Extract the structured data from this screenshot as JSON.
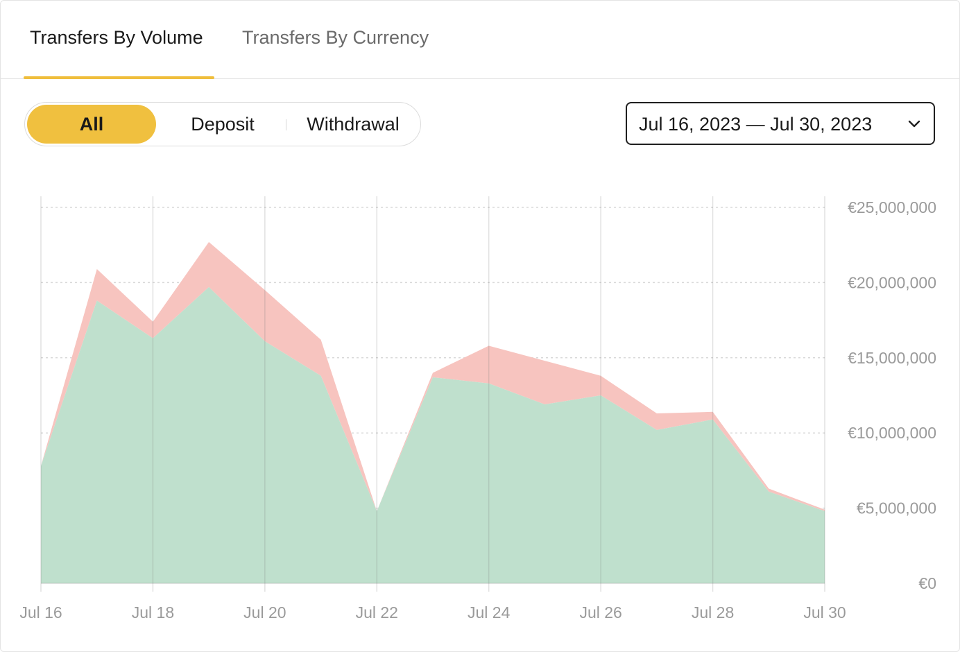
{
  "tabs": [
    {
      "label": "Transfers By Volume",
      "active": true
    },
    {
      "label": "Transfers By Currency",
      "active": false
    }
  ],
  "filter": {
    "options": [
      "All",
      "Deposit",
      "Withdrawal"
    ],
    "selected": "All"
  },
  "date_range": {
    "label": "Jul 16, 2023 — Jul 30, 2023",
    "icon": "chevron-down-icon"
  },
  "colors": {
    "accent": "#f0c03f",
    "deposit_fill": "#bfe0cd",
    "withdrawal_fill": "#f7c4bf"
  },
  "chart_data": {
    "type": "area",
    "stacked": true,
    "x": [
      "2023-07-16",
      "2023-07-17",
      "2023-07-18",
      "2023-07-19",
      "2023-07-20",
      "2023-07-21",
      "2023-07-22",
      "2023-07-23",
      "2023-07-24",
      "2023-07-25",
      "2023-07-26",
      "2023-07-27",
      "2023-07-28",
      "2023-07-29",
      "2023-07-30"
    ],
    "x_tick_labels": [
      "Jul 16",
      "Jul 18",
      "Jul 20",
      "Jul 22",
      "Jul 24",
      "Jul 26",
      "Jul 28",
      "Jul 30"
    ],
    "x_tick_values": [
      "2023-07-16",
      "2023-07-18",
      "2023-07-20",
      "2023-07-22",
      "2023-07-24",
      "2023-07-26",
      "2023-07-28",
      "2023-07-30"
    ],
    "series": [
      {
        "values": [
          7800000,
          18800000,
          16300000,
          19700000,
          16100000,
          13800000,
          4800000,
          13700000,
          13300000,
          11900000,
          12500000,
          10200000,
          10900000,
          6100000,
          4800000
        ],
        "color": "#bfe0cd"
      },
      {
        "values": [
          0,
          2100000,
          1100000,
          3000000,
          3400000,
          2400000,
          0,
          300000,
          2500000,
          2900000,
          1300000,
          1100000,
          500000,
          200000,
          100000
        ],
        "color": "#f7c4bf"
      }
    ],
    "y_tick_labels": [
      "€0",
      "€5,000,000",
      "€10,000,000",
      "€15,000,000",
      "€20,000,000",
      "€25,000,000"
    ],
    "y_tick_values": [
      0,
      5000000,
      10000000,
      15000000,
      20000000,
      25000000
    ],
    "ylim": [
      0,
      25000000
    ],
    "y_axis_position": "right",
    "grid": true
  }
}
